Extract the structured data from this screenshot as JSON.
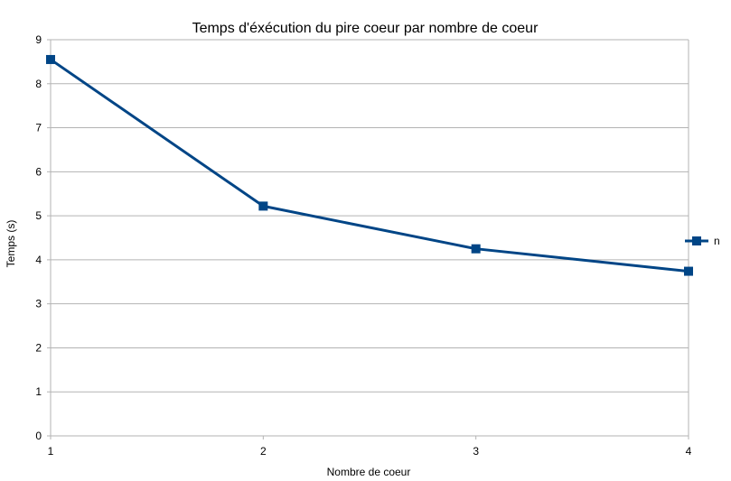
{
  "chart_data": {
    "type": "line",
    "title": "Temps d'éxécution du pire coeur par nombre de coeur",
    "xlabel": "Nombre de coeur",
    "ylabel": "Temps (s)",
    "x": [
      1,
      2,
      3,
      4
    ],
    "x_tick_labels": [
      "1",
      "2",
      "3",
      "4"
    ],
    "y_tick_labels": [
      "0",
      "1",
      "2",
      "3",
      "4",
      "5",
      "6",
      "7",
      "8",
      "9"
    ],
    "xlim": [
      1,
      4
    ],
    "ylim": [
      0,
      9
    ],
    "grid": true,
    "legend_position": "right",
    "series": [
      {
        "name": "n",
        "values": [
          8.55,
          5.22,
          4.25,
          3.74
        ],
        "color": "#004586"
      }
    ]
  }
}
